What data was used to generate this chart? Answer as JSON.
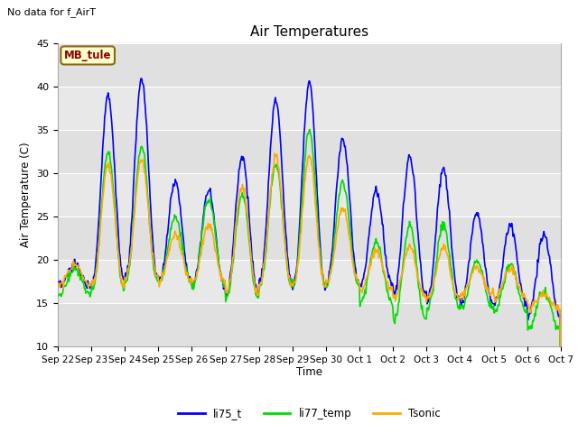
{
  "title": "Air Temperatures",
  "top_left_text": "No data for f_AirT",
  "ylabel": "Air Temperature (C)",
  "xlabel": "Time",
  "ylim": [
    10,
    45
  ],
  "plot_bg_color": "#e8e8e8",
  "grid_color": "white",
  "annotation_label": "MB_tule",
  "annotation_color": "#8B0000",
  "annotation_bg": "#ffffcc",
  "annotation_border": "#8B6914",
  "series": {
    "li75_t": {
      "color": "#0000ff",
      "linewidth": 1.2
    },
    "li77_temp": {
      "color": "#00dd00",
      "linewidth": 1.2
    },
    "Tsonic": {
      "color": "#ffaa00",
      "linewidth": 1.2
    }
  },
  "x_tick_labels": [
    "Sep 22",
    "Sep 23",
    "Sep 24",
    "Sep 25",
    "Sep 26",
    "Sep 27",
    "Sep 28",
    "Sep 29",
    "Sep 30",
    "Oct 1",
    "Oct 2",
    "Oct 3",
    "Oct 4",
    "Oct 5",
    "Oct 6",
    "Oct 7"
  ],
  "yticks": [
    10,
    15,
    20,
    25,
    30,
    35,
    40,
    45
  ]
}
